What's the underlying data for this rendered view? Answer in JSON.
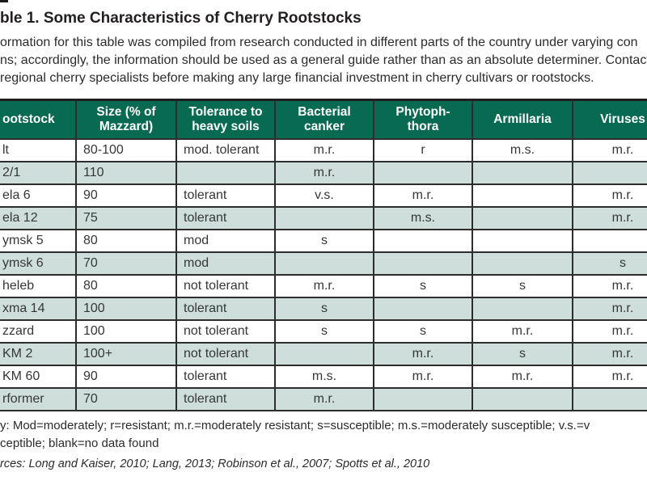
{
  "page": {
    "title": "ble 1. Some Characteristics of Cherry Rootstocks",
    "intro": {
      "line1": "ormation for this table was compiled from research conducted in different parts of the country under varying con",
      "line2": "ns; accordingly, the information should be used as a general guide rather than as an absolute determiner. Contact lo",
      "line3": "regional cherry specialists before making any large financial investment in cherry cultivars or rootstocks."
    }
  },
  "table": {
    "headers": [
      "ootstock",
      "Size (% of\nMazzard)",
      "Tolerance to\nheavy soils",
      "Bacterial\ncanker",
      "Phytoph-\nthora",
      "Armillaria",
      "Viruses"
    ],
    "rows": [
      [
        "lt",
        "80-100",
        "mod. tolerant",
        "m.r.",
        "r",
        "m.s.",
        "m.r."
      ],
      [
        "2/1",
        "110",
        "",
        "m.r.",
        "",
        "",
        ""
      ],
      [
        "ela 6",
        "90",
        "tolerant",
        "v.s.",
        "m.r.",
        "",
        "m.r."
      ],
      [
        "ela 12",
        "75",
        "tolerant",
        "",
        "m.s.",
        "",
        "m.r."
      ],
      [
        "ymsk 5",
        "80",
        "mod",
        "s",
        "",
        "",
        ""
      ],
      [
        "ymsk 6",
        "70",
        "mod",
        "",
        "",
        "",
        "s"
      ],
      [
        "heleb",
        "80",
        "not tolerant",
        "m.r.",
        "s",
        "s",
        "m.r."
      ],
      [
        "xma 14",
        "100",
        "tolerant",
        "s",
        "",
        "",
        "m.r."
      ],
      [
        "zzard",
        "100",
        "not tolerant",
        "s",
        "s",
        "m.r.",
        "m.r."
      ],
      [
        "KM 2",
        "100+",
        "not tolerant",
        "",
        "m.r.",
        "s",
        "m.r."
      ],
      [
        "KM 60",
        "90",
        "tolerant",
        "m.s.",
        "m.r.",
        "m.r.",
        "m.r."
      ],
      [
        "rformer",
        "70",
        "tolerant",
        "m.r.",
        "",
        "",
        ""
      ]
    ]
  },
  "footnotes": {
    "key_line1": "y: Mod=moderately; r=resistant; m.r.=moderately resistant; s=susceptible; m.s.=moderately susceptible; v.s.=v",
    "key_line2": "ceptible; blank=no data found",
    "sources": "rces: Long and Kaiser, 2010; Lang, 2013; Robinson et al., 2007; Spotts et al., 2010"
  },
  "colors": {
    "header_bg": "#086a51",
    "header_text": "#ffffff",
    "row_alt_bg": "#cedfdb",
    "border": "#2d2d2d",
    "body_text": "#363636"
  }
}
